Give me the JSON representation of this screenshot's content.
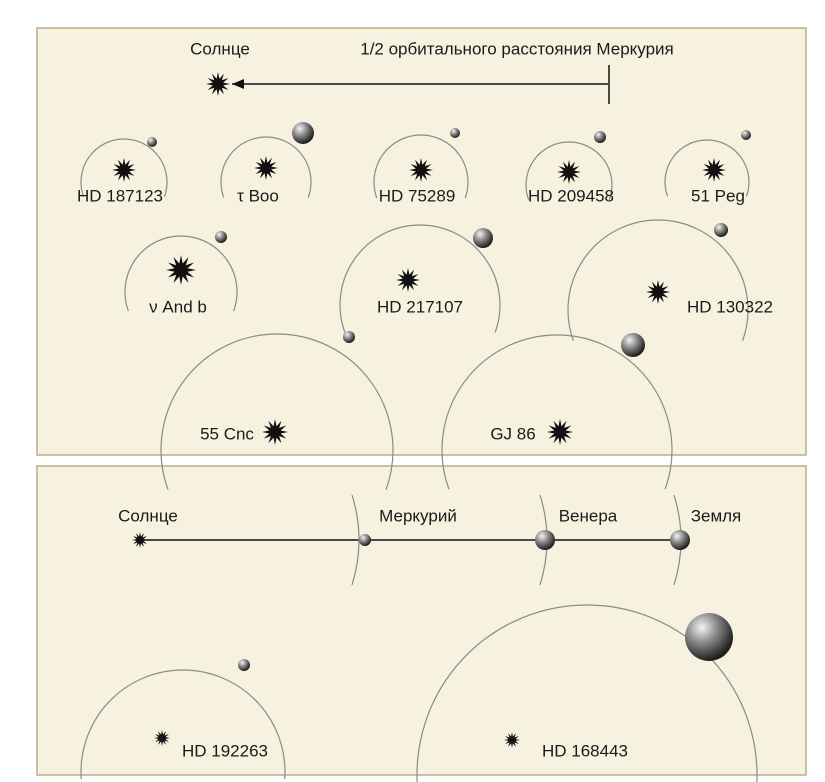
{
  "top": {
    "sun_label": "Солнце",
    "scale_label": "1/2 орбитального расстояния Меркурия",
    "systems": [
      {
        "label": "HD 187123"
      },
      {
        "label": "τ Boo"
      },
      {
        "label": "HD 75289"
      },
      {
        "label": "HD 209458"
      },
      {
        "label": "51 Peg"
      },
      {
        "label": "ν And b"
      },
      {
        "label": "HD 217107"
      },
      {
        "label": "HD 130322"
      },
      {
        "label": "55 Cnc"
      },
      {
        "label": "GJ 86"
      }
    ]
  },
  "bottom": {
    "sun_label": "Солнце",
    "planets": [
      {
        "label": "Меркурий"
      },
      {
        "label": "Венера"
      },
      {
        "label": "Земля"
      }
    ],
    "systems": [
      {
        "label": "HD 192263"
      },
      {
        "label": "HD 168443"
      }
    ]
  }
}
